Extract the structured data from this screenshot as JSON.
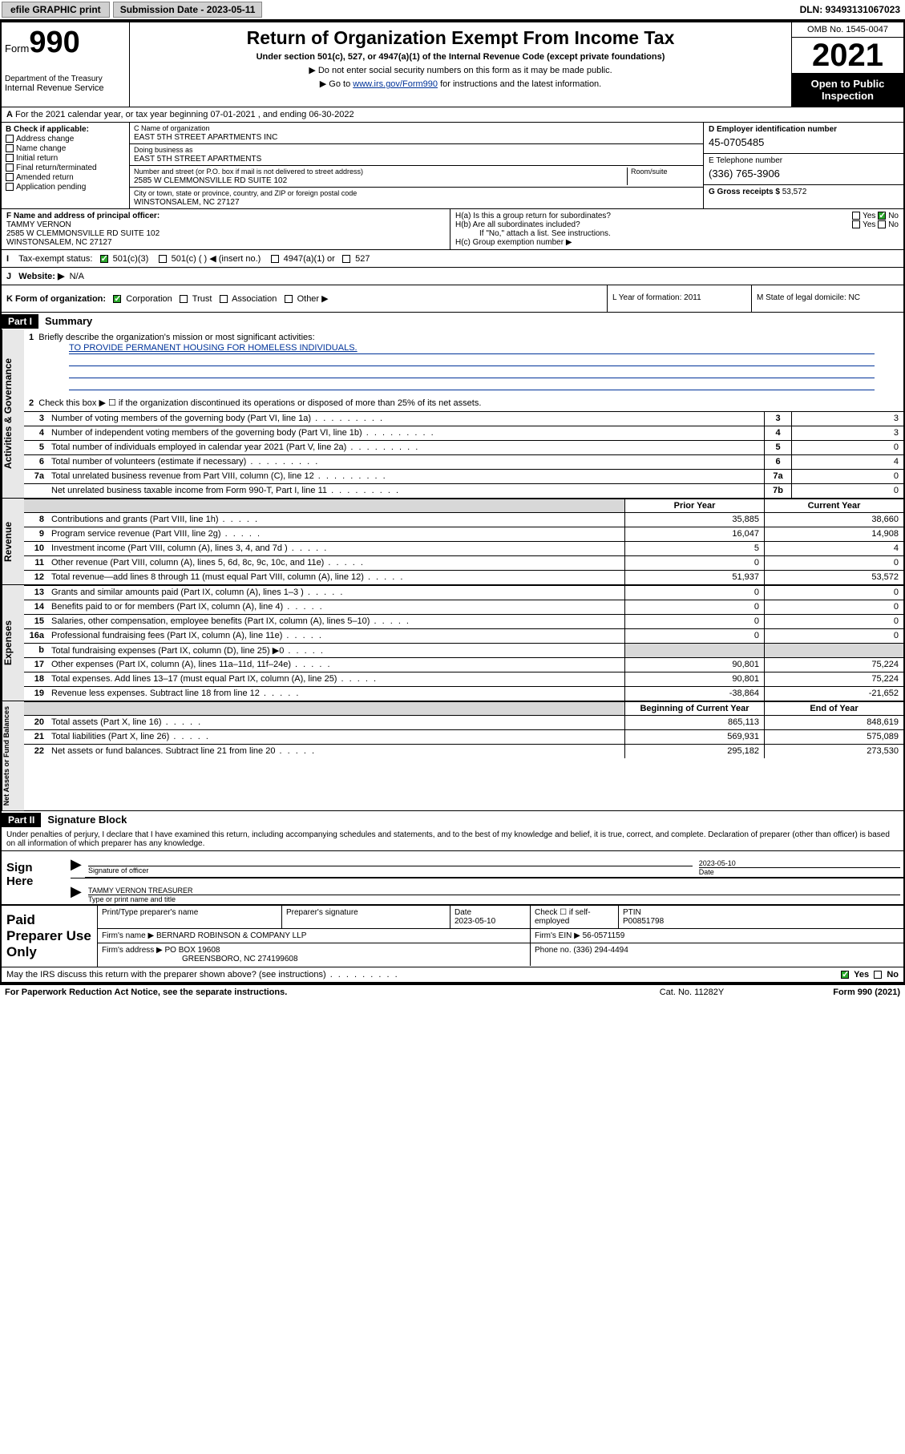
{
  "topbar": {
    "efile_label": "efile GRAPHIC print",
    "submission_label": "Submission Date - 2023-05-11",
    "dln": "DLN: 93493131067023"
  },
  "header": {
    "form_prefix": "Form",
    "form_number": "990",
    "dept": "Department of the Treasury",
    "irs": "Internal Revenue Service",
    "title": "Return of Organization Exempt From Income Tax",
    "sub1": "Under section 501(c), 527, or 4947(a)(1) of the Internal Revenue Code (except private foundations)",
    "sub2": "▶ Do not enter social security numbers on this form as it may be made public.",
    "sub3_prefix": "▶ Go to ",
    "sub3_link": "www.irs.gov/Form990",
    "sub3_suffix": " for instructions and the latest information.",
    "omb": "OMB No. 1545-0047",
    "year": "2021",
    "open_public": "Open to Public Inspection"
  },
  "row_a": "For the 2021 calendar year, or tax year beginning 07-01-2021   , and ending 06-30-2022",
  "section_b": {
    "header": "B Check if applicable:",
    "opts": [
      "Address change",
      "Name change",
      "Initial return",
      "Final return/terminated",
      "Amended return",
      "Application pending"
    ]
  },
  "section_c": {
    "name_label": "C Name of organization",
    "name": "EAST 5TH STREET APARTMENTS INC",
    "dba_label": "Doing business as",
    "dba": "EAST 5TH STREET APARTMENTS",
    "street_label": "Number and street (or P.O. box if mail is not delivered to street address)",
    "room_label": "Room/suite",
    "street": "2585 W CLEMMONSVILLE RD SUITE 102",
    "city_label": "City or town, state or province, country, and ZIP or foreign postal code",
    "city": "WINSTONSALEM, NC  27127"
  },
  "section_d": {
    "ein_label": "D Employer identification number",
    "ein": "45-0705485",
    "phone_label": "E Telephone number",
    "phone": "(336) 765-3906",
    "gross_label": "G Gross receipts $",
    "gross": "53,572"
  },
  "section_f": {
    "label": "F Name and address of principal officer:",
    "name": "TAMMY VERNON",
    "addr1": "2585 W CLEMMONSVILLE RD SUITE 102",
    "addr2": "WINSTONSALEM, NC  27127"
  },
  "section_h": {
    "ha": "H(a)  Is this a group return for subordinates?",
    "hb": "H(b)  Are all subordinates included?",
    "hb_note": "If \"No,\" attach a list. See instructions.",
    "hc": "H(c)  Group exemption number ▶"
  },
  "section_i": {
    "label": "Tax-exempt status:",
    "opt1": "501(c)(3)",
    "opt2": "501(c) (  ) ◀ (insert no.)",
    "opt3": "4947(a)(1) or",
    "opt4": "527"
  },
  "section_j": {
    "label": "Website: ▶",
    "val": "N/A"
  },
  "section_k": {
    "label": "K Form of organization:",
    "opts": [
      "Corporation",
      "Trust",
      "Association",
      "Other ▶"
    ],
    "L": "L Year of formation: 2011",
    "M": "M State of legal domicile: NC"
  },
  "part1": {
    "header": "Part I",
    "title": "Summary",
    "line1": "Briefly describe the organization's mission or most significant activities:",
    "mission": "TO PROVIDE PERMANENT HOUSING FOR HOMELESS INDIVIDUALS.",
    "line2": "Check this box ▶ ☐  if the organization discontinued its operations or disposed of more than 25% of its net assets.",
    "tabs": {
      "gov": "Activities & Governance",
      "rev": "Revenue",
      "exp": "Expenses",
      "net": "Net Assets or Fund Balances"
    },
    "col_prior": "Prior Year",
    "col_current": "Current Year",
    "col_begin": "Beginning of Current Year",
    "col_end": "End of Year",
    "rows_gov": [
      {
        "n": "3",
        "t": "Number of voting members of the governing body (Part VI, line 1a)",
        "box": "3",
        "v": "3"
      },
      {
        "n": "4",
        "t": "Number of independent voting members of the governing body (Part VI, line 1b)",
        "box": "4",
        "v": "3"
      },
      {
        "n": "5",
        "t": "Total number of individuals employed in calendar year 2021 (Part V, line 2a)",
        "box": "5",
        "v": "0"
      },
      {
        "n": "6",
        "t": "Total number of volunteers (estimate if necessary)",
        "box": "6",
        "v": "4"
      },
      {
        "n": "7a",
        "t": "Total unrelated business revenue from Part VIII, column (C), line 12",
        "box": "7a",
        "v": "0"
      },
      {
        "n": "",
        "t": "Net unrelated business taxable income from Form 990-T, Part I, line 11",
        "box": "7b",
        "v": "0"
      }
    ],
    "rows_rev": [
      {
        "n": "8",
        "t": "Contributions and grants (Part VIII, line 1h)",
        "p": "35,885",
        "c": "38,660"
      },
      {
        "n": "9",
        "t": "Program service revenue (Part VIII, line 2g)",
        "p": "16,047",
        "c": "14,908"
      },
      {
        "n": "10",
        "t": "Investment income (Part VIII, column (A), lines 3, 4, and 7d )",
        "p": "5",
        "c": "4"
      },
      {
        "n": "11",
        "t": "Other revenue (Part VIII, column (A), lines 5, 6d, 8c, 9c, 10c, and 11e)",
        "p": "0",
        "c": "0"
      },
      {
        "n": "12",
        "t": "Total revenue—add lines 8 through 11 (must equal Part VIII, column (A), line 12)",
        "p": "51,937",
        "c": "53,572"
      }
    ],
    "rows_exp": [
      {
        "n": "13",
        "t": "Grants and similar amounts paid (Part IX, column (A), lines 1–3 )",
        "p": "0",
        "c": "0"
      },
      {
        "n": "14",
        "t": "Benefits paid to or for members (Part IX, column (A), line 4)",
        "p": "0",
        "c": "0"
      },
      {
        "n": "15",
        "t": "Salaries, other compensation, employee benefits (Part IX, column (A), lines 5–10)",
        "p": "0",
        "c": "0"
      },
      {
        "n": "16a",
        "t": "Professional fundraising fees (Part IX, column (A), line 11e)",
        "p": "0",
        "c": "0"
      },
      {
        "n": "b",
        "t": "Total fundraising expenses (Part IX, column (D), line 25) ▶0",
        "p": "shade",
        "c": "shade"
      },
      {
        "n": "17",
        "t": "Other expenses (Part IX, column (A), lines 11a–11d, 11f–24e)",
        "p": "90,801",
        "c": "75,224"
      },
      {
        "n": "18",
        "t": "Total expenses. Add lines 13–17 (must equal Part IX, column (A), line 25)",
        "p": "90,801",
        "c": "75,224"
      },
      {
        "n": "19",
        "t": "Revenue less expenses. Subtract line 18 from line 12",
        "p": "-38,864",
        "c": "-21,652"
      }
    ],
    "rows_net": [
      {
        "n": "20",
        "t": "Total assets (Part X, line 16)",
        "p": "865,113",
        "c": "848,619"
      },
      {
        "n": "21",
        "t": "Total liabilities (Part X, line 26)",
        "p": "569,931",
        "c": "575,089"
      },
      {
        "n": "22",
        "t": "Net assets or fund balances. Subtract line 21 from line 20",
        "p": "295,182",
        "c": "273,530"
      }
    ]
  },
  "part2": {
    "header": "Part II",
    "title": "Signature Block",
    "penalty": "Under penalties of perjury, I declare that I have examined this return, including accompanying schedules and statements, and to the best of my knowledge and belief, it is true, correct, and complete. Declaration of preparer (other than officer) is based on all information of which preparer has any knowledge.",
    "sign_here": "Sign Here",
    "sig_officer": "Signature of officer",
    "sig_date": "2023-05-10",
    "date_label": "Date",
    "officer_name": "TAMMY VERNON  TREASURER",
    "officer_label": "Type or print name and title"
  },
  "paid": {
    "label": "Paid Preparer Use Only",
    "h1": "Print/Type preparer's name",
    "h2": "Preparer's signature",
    "h3": "Date",
    "date": "2023-05-10",
    "h4": "Check ☐ if self-employed",
    "h5": "PTIN",
    "ptin": "P00851798",
    "firm_name_label": "Firm's name    ▶",
    "firm_name": "BERNARD ROBINSON & COMPANY LLP",
    "firm_ein_label": "Firm's EIN ▶",
    "firm_ein": "56-0571159",
    "firm_addr_label": "Firm's address ▶",
    "firm_addr1": "PO BOX 19608",
    "firm_addr2": "GREENSBORO, NC  274199608",
    "phone_label": "Phone no.",
    "phone": "(336) 294-4494"
  },
  "may_discuss": "May the IRS discuss this return with the preparer shown above? (see instructions)",
  "footer": {
    "left": "For Paperwork Reduction Act Notice, see the separate instructions.",
    "mid": "Cat. No. 11282Y",
    "right": "Form 990 (2021)"
  },
  "yes": "Yes",
  "no": "No"
}
